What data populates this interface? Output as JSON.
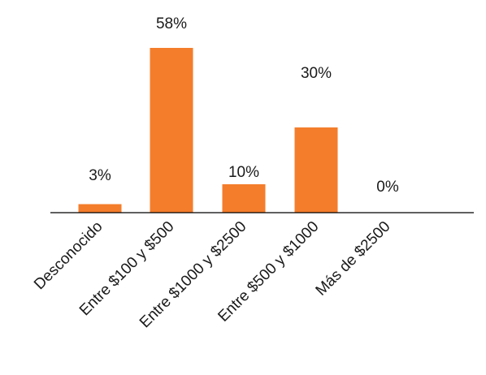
{
  "chart_data": {
    "type": "bar",
    "title": "",
    "xlabel": "",
    "ylabel": "",
    "categories": [
      "Desconocido",
      "Entre $100 y $500",
      "Entre $1000 y $2500",
      "Entre $500 y $1000",
      "Más de $2500"
    ],
    "values": [
      3,
      58,
      10,
      30,
      0
    ],
    "data_labels": [
      "3%",
      "58%",
      "10%",
      "30%",
      "0%"
    ],
    "unit": "%",
    "ylim": [
      0,
      58
    ],
    "grid": false,
    "legend": "none",
    "bar_color": "#F47D2B",
    "axis_color": "#000000"
  }
}
